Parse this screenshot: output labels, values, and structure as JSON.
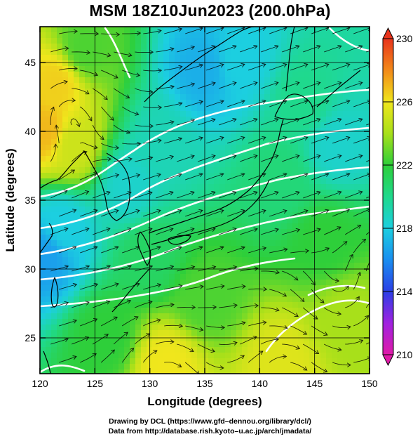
{
  "title": "MSM 18Z10Jun2023 (200.0hPa)",
  "xlabel": "Longitude (degrees)",
  "ylabel": "Latitude  (degrees)",
  "credits": {
    "line1": "Drawing by DCL (https://www.gfd–dennou.org/library/dcl/)",
    "line2": "Data from http://database.rish.kyoto–u.ac.jp/arch/jmadata/"
  },
  "chart_data": {
    "type": "heatmap",
    "title": "MSM 18Z10Jun2023 (200.0hPa)",
    "xlabel": "Longitude (degrees)",
    "ylabel": "Latitude  (degrees)",
    "xlim": [
      120,
      150
    ],
    "ylim": [
      22.4,
      47.6
    ],
    "x_ticks": [
      "120",
      "125",
      "130",
      "135",
      "140",
      "145",
      "150"
    ],
    "x_tick_values": [
      120,
      125,
      130,
      135,
      140,
      145,
      150
    ],
    "y_ticks": [
      "25",
      "30",
      "35",
      "40",
      "45"
    ],
    "y_tick_values": [
      25,
      30,
      35,
      40,
      45
    ],
    "grid_lons": [
      120,
      125,
      130,
      135,
      140,
      145,
      150
    ],
    "grid_lats": [
      25,
      30,
      35,
      40,
      45
    ],
    "grid": true,
    "colorbar": {
      "min": 210,
      "max": 230,
      "ticks": [
        "210",
        "214",
        "218",
        "222",
        "226",
        "230"
      ],
      "tick_values": [
        210,
        214,
        218,
        222,
        226,
        230
      ],
      "stops": [
        {
          "v": 210,
          "c": "#e01aa8"
        },
        {
          "v": 212,
          "c": "#a022e0"
        },
        {
          "v": 214,
          "c": "#2b3fe6"
        },
        {
          "v": 216,
          "c": "#1a8ef0"
        },
        {
          "v": 218,
          "c": "#1ccfe0"
        },
        {
          "v": 220,
          "c": "#1fd98c"
        },
        {
          "v": 222,
          "c": "#2ecf3a"
        },
        {
          "v": 224,
          "c": "#a8e01a"
        },
        {
          "v": 226,
          "c": "#f0e61c"
        },
        {
          "v": 228,
          "c": "#f28a1a"
        },
        {
          "v": 230,
          "c": "#e8341c"
        }
      ],
      "extend_colors": {
        "top": "#e8341c",
        "bottom": "#e01aa8"
      }
    },
    "field_samples": [
      {
        "lon": 121.5,
        "lat": 43.5,
        "v": 226.5
      },
      {
        "lon": 120.5,
        "lat": 40.0,
        "v": 227.0
      },
      {
        "lon": 123.0,
        "lat": 39.0,
        "v": 225.0
      },
      {
        "lon": 120.5,
        "lat": 31.0,
        "v": 216.5
      },
      {
        "lon": 122.0,
        "lat": 33.0,
        "v": 218.0
      },
      {
        "lon": 128.0,
        "lat": 36.0,
        "v": 218.5
      },
      {
        "lon": 131.0,
        "lat": 39.0,
        "v": 219.0
      },
      {
        "lon": 135.0,
        "lat": 44.5,
        "v": 217.0
      },
      {
        "lon": 138.0,
        "lat": 45.0,
        "v": 218.0
      },
      {
        "lon": 147.0,
        "lat": 39.0,
        "v": 218.5
      },
      {
        "lon": 144.0,
        "lat": 42.0,
        "v": 220.0
      },
      {
        "lon": 142.0,
        "lat": 36.5,
        "v": 220.5
      },
      {
        "lon": 124.0,
        "lat": 46.0,
        "v": 222.5
      },
      {
        "lon": 130.0,
        "lat": 31.0,
        "v": 221.0
      },
      {
        "lon": 135.0,
        "lat": 28.0,
        "v": 222.5
      },
      {
        "lon": 131.5,
        "lat": 23.0,
        "v": 226.0
      },
      {
        "lon": 142.0,
        "lat": 23.0,
        "v": 225.5
      },
      {
        "lon": 148.0,
        "lat": 26.5,
        "v": 224.0
      },
      {
        "lon": 126.0,
        "lat": 25.0,
        "v": 222.0
      },
      {
        "lon": 146.0,
        "lat": 32.0,
        "v": 222.0
      }
    ]
  }
}
